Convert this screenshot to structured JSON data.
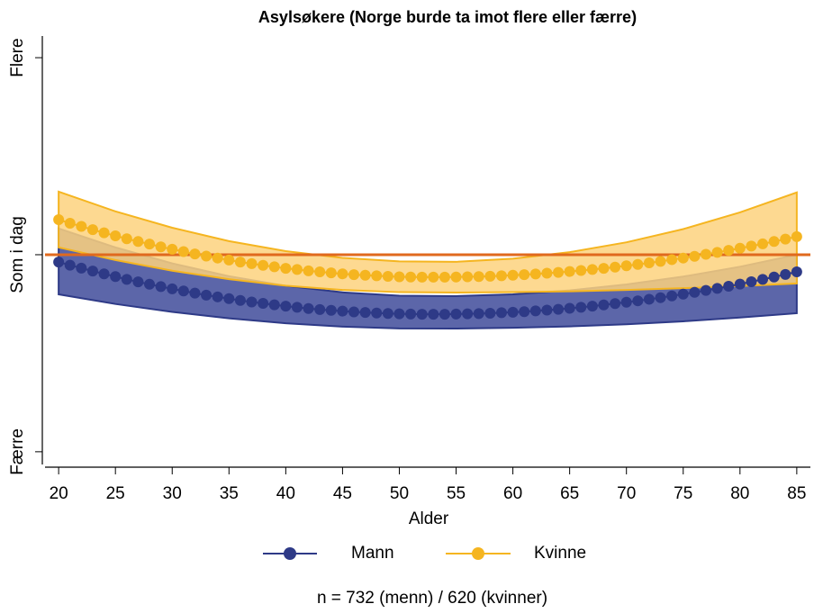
{
  "chart_data": {
    "type": "line",
    "title": "Asylsøkere (Norge burde ta imot flere eller færre)",
    "x_label": "Alder",
    "note": "n = 732 (menn) / 620 (kvinner)",
    "xlim": [
      18.8,
      86.2
    ],
    "xticks": [
      20,
      25,
      30,
      35,
      40,
      45,
      50,
      55,
      60,
      65,
      70,
      75,
      80,
      85
    ],
    "ylim": [
      0.94,
      3.11
    ],
    "yticks": [
      {
        "value": 1,
        "label": "Færre"
      },
      {
        "value": 2,
        "label": "Som i dag"
      },
      {
        "value": 3,
        "label": "Flere"
      }
    ],
    "reference_line": {
      "value": 2,
      "color": "#e0691e"
    },
    "x": [
      20,
      21,
      22,
      23,
      24,
      25,
      26,
      27,
      28,
      29,
      30,
      31,
      32,
      33,
      34,
      35,
      36,
      37,
      38,
      39,
      40,
      41,
      42,
      43,
      44,
      45,
      46,
      47,
      48,
      49,
      50,
      51,
      52,
      53,
      54,
      55,
      56,
      57,
      58,
      59,
      60,
      61,
      62,
      63,
      64,
      65,
      66,
      67,
      68,
      69,
      70,
      71,
      72,
      73,
      74,
      75,
      76,
      77,
      78,
      79,
      80,
      81,
      82,
      83,
      84,
      85
    ],
    "band_x": [
      20,
      25,
      30,
      35,
      40,
      45,
      50,
      55,
      60,
      65,
      70,
      75,
      80,
      85
    ],
    "series": [
      {
        "name": "Mann",
        "color": "#2e3a87",
        "band_color": "#4a55a0",
        "values": [
          1.963,
          1.947,
          1.932,
          1.917,
          1.903,
          1.889,
          1.875,
          1.862,
          1.85,
          1.838,
          1.827,
          1.816,
          1.805,
          1.795,
          1.786,
          1.777,
          1.768,
          1.76,
          1.753,
          1.746,
          1.739,
          1.733,
          1.727,
          1.722,
          1.718,
          1.714,
          1.71,
          1.707,
          1.704,
          1.702,
          1.7,
          1.699,
          1.698,
          1.698,
          1.698,
          1.699,
          1.7,
          1.701,
          1.703,
          1.706,
          1.708,
          1.711,
          1.715,
          1.719,
          1.723,
          1.728,
          1.733,
          1.739,
          1.745,
          1.752,
          1.759,
          1.766,
          1.774,
          1.782,
          1.791,
          1.8,
          1.809,
          1.819,
          1.829,
          1.84,
          1.851,
          1.863,
          1.875,
          1.887,
          1.9,
          1.913
        ],
        "upper": [
          2.133,
          2.037,
          1.956,
          1.891,
          1.842,
          1.809,
          1.792,
          1.79,
          1.799,
          1.819,
          1.849,
          1.889,
          1.939,
          2.0
        ],
        "lower": [
          1.799,
          1.75,
          1.71,
          1.677,
          1.652,
          1.635,
          1.626,
          1.625,
          1.629,
          1.636,
          1.647,
          1.662,
          1.681,
          1.703
        ]
      },
      {
        "name": "Kvinne",
        "color": "#f5b520",
        "band_color": "#fdd27e",
        "values": [
          2.178,
          2.16,
          2.144,
          2.127,
          2.111,
          2.096,
          2.081,
          2.067,
          2.054,
          2.04,
          2.028,
          2.016,
          2.004,
          1.993,
          1.983,
          1.973,
          1.963,
          1.955,
          1.946,
          1.939,
          1.931,
          1.925,
          1.918,
          1.913,
          1.908,
          1.903,
          1.899,
          1.896,
          1.893,
          1.89,
          1.888,
          1.887,
          1.886,
          1.886,
          1.886,
          1.887,
          1.888,
          1.889,
          1.891,
          1.893,
          1.896,
          1.899,
          1.902,
          1.906,
          1.91,
          1.915,
          1.92,
          1.925,
          1.931,
          1.937,
          1.944,
          1.951,
          1.959,
          1.966,
          1.975,
          1.983,
          1.992,
          2.002,
          2.012,
          2.022,
          2.033,
          2.044,
          2.055,
          2.067,
          2.079,
          2.092
        ],
        "upper": [
          2.32,
          2.22,
          2.137,
          2.069,
          2.018,
          1.984,
          1.966,
          1.964,
          1.98,
          2.013,
          2.063,
          2.13,
          2.215,
          2.316
        ],
        "lower": [
          2.037,
          1.973,
          1.919,
          1.876,
          1.843,
          1.821,
          1.81,
          1.808,
          1.81,
          1.814,
          1.821,
          1.83,
          1.841,
          1.854
        ]
      }
    ]
  }
}
